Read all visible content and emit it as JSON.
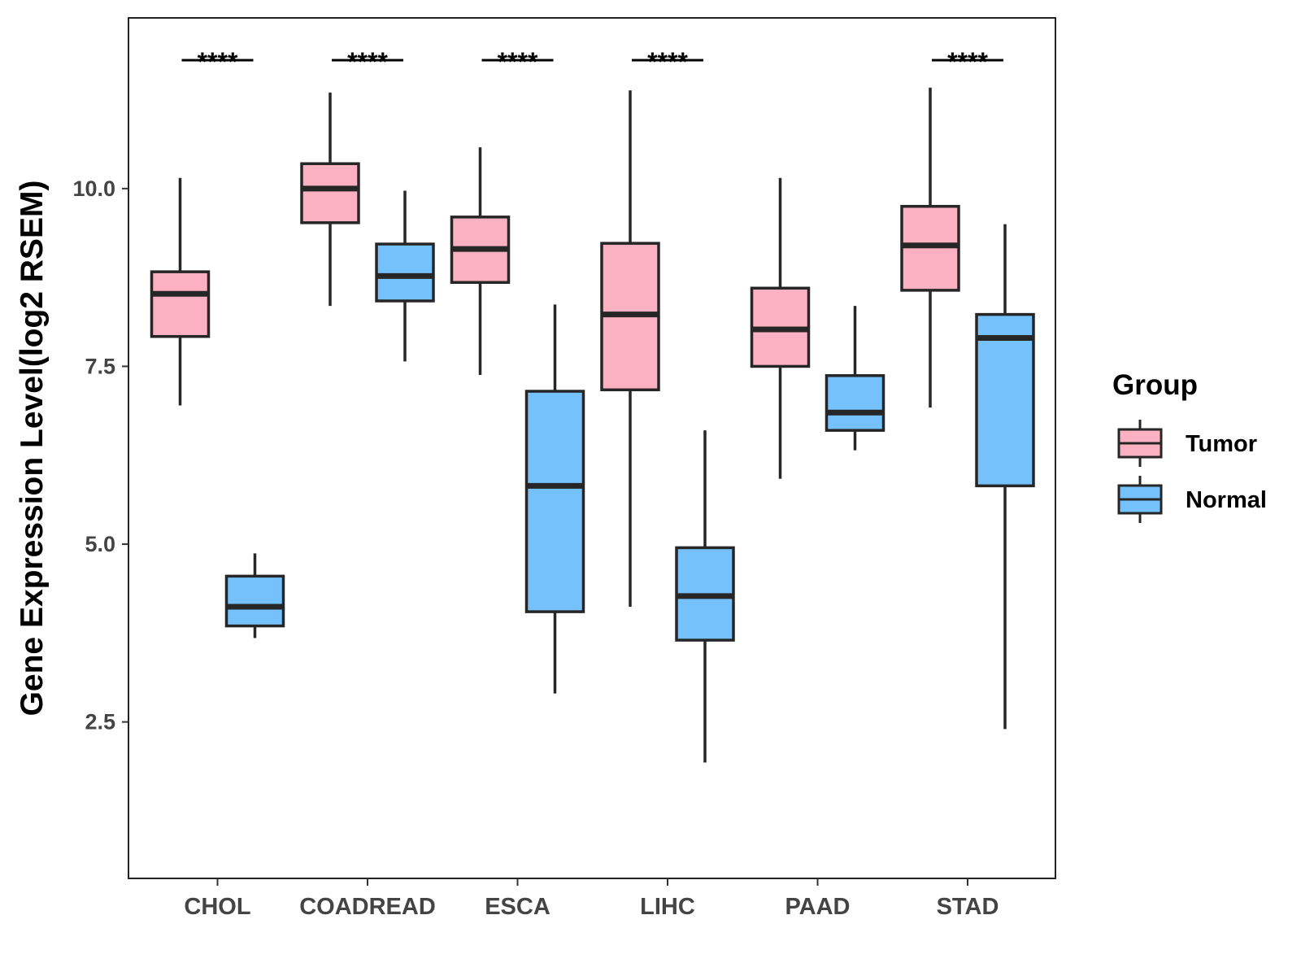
{
  "chart_data": {
    "type": "boxplot",
    "title": "",
    "xlabel": "",
    "ylabel": "Gene Expression Level(log2 RSEM)",
    "ylim": [
      0.3,
      12.4
    ],
    "yticks": [
      2.5,
      5.0,
      7.5,
      10.0
    ],
    "ytick_labels": [
      "2.5",
      "5.0",
      "7.5",
      "10.0"
    ],
    "categories": [
      "CHOL",
      "COADREAD",
      "ESCA",
      "LIHC",
      "PAAD",
      "STAD"
    ],
    "series": [
      {
        "name": "Tumor",
        "color": "#FCB1C3",
        "boxes": [
          {
            "whisker_low": 6.95,
            "q1": 7.92,
            "median": 8.52,
            "q3": 8.83,
            "whisker_high": 10.15
          },
          {
            "whisker_low": 8.35,
            "q1": 9.52,
            "median": 10.0,
            "q3": 10.35,
            "whisker_high": 11.35
          },
          {
            "whisker_low": 7.38,
            "q1": 8.68,
            "median": 9.15,
            "q3": 9.6,
            "whisker_high": 10.58
          },
          {
            "whisker_low": 4.12,
            "q1": 7.17,
            "median": 8.23,
            "q3": 9.23,
            "whisker_high": 11.38
          },
          {
            "whisker_low": 5.92,
            "q1": 7.5,
            "median": 8.02,
            "q3": 8.6,
            "whisker_high": 10.15
          },
          {
            "whisker_low": 6.92,
            "q1": 8.57,
            "median": 9.2,
            "q3": 9.75,
            "whisker_high": 11.42
          }
        ]
      },
      {
        "name": "Normal",
        "color": "#74C1FB",
        "boxes": [
          {
            "whisker_low": 3.68,
            "q1": 3.85,
            "median": 4.12,
            "q3": 4.55,
            "whisker_high": 4.87
          },
          {
            "whisker_low": 7.57,
            "q1": 8.42,
            "median": 8.77,
            "q3": 9.22,
            "whisker_high": 9.97
          },
          {
            "whisker_low": 2.9,
            "q1": 4.05,
            "median": 5.82,
            "q3": 7.15,
            "whisker_high": 8.37
          },
          {
            "whisker_low": 1.93,
            "q1": 3.65,
            "median": 4.27,
            "q3": 4.95,
            "whisker_high": 6.6
          },
          {
            "whisker_low": 6.32,
            "q1": 6.6,
            "median": 6.85,
            "q3": 7.37,
            "whisker_high": 8.35
          },
          {
            "whisker_low": 2.4,
            "q1": 5.82,
            "median": 7.9,
            "q3": 8.23,
            "whisker_high": 9.5
          }
        ]
      }
    ],
    "significance": [
      "****",
      "****",
      "****",
      "****",
      "",
      "****"
    ],
    "legend": {
      "title": "Group",
      "position": "right",
      "entries": [
        "Tumor",
        "Normal"
      ]
    },
    "grid": false
  },
  "colors": {
    "tumor": "#FCB1C3",
    "normal": "#74C1FB",
    "stroke": "#262626",
    "axis_text": "#444444"
  }
}
